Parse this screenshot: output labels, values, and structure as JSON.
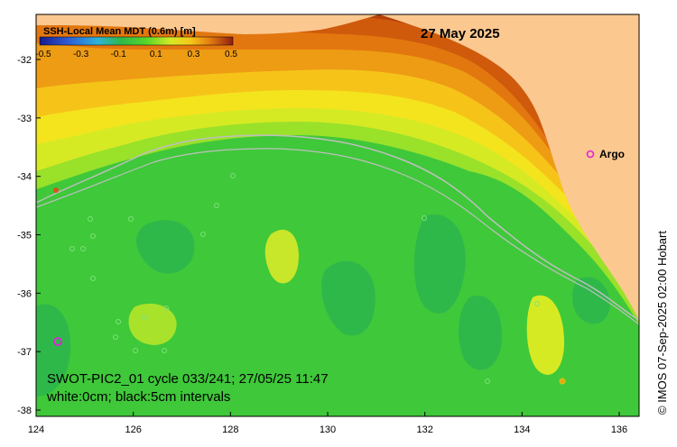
{
  "title": "27 May 2025",
  "colorbar": {
    "label": "SSH-Local Mean MDT (0.6m) [m]",
    "tick_labels": [
      "-0.5",
      "-0.3",
      "-0.1",
      "0.1",
      "0.3",
      "0.5"
    ],
    "colors": [
      "#1a1a8c",
      "#2e3fcf",
      "#2a9be0",
      "#3fd0c8",
      "#2fb84a",
      "#3fd12e",
      "#c8e62a",
      "#f3e71e",
      "#f2b413",
      "#e07a0f",
      "#c8500a",
      "#8f1d10"
    ]
  },
  "axes": {
    "x_ticks": [
      "124",
      "126",
      "128",
      "130",
      "132",
      "134",
      "136"
    ],
    "y_ticks": [
      "-32",
      "-33",
      "-34",
      "-35",
      "-36",
      "-37",
      "-38"
    ]
  },
  "annotations": {
    "argo_label": "Argo",
    "swath_info": "SWOT-PIC2_01 cycle 033/241; 27/05/25 11:47",
    "contour_info": "white:0cm; black:5cm intervals"
  },
  "credit": "© IMOS 07-Sep-2025 02:00 Hobart",
  "colors": {
    "land": "#fbc88f",
    "sea_green": "#44c93c",
    "argo_marker": "#e021e0"
  }
}
